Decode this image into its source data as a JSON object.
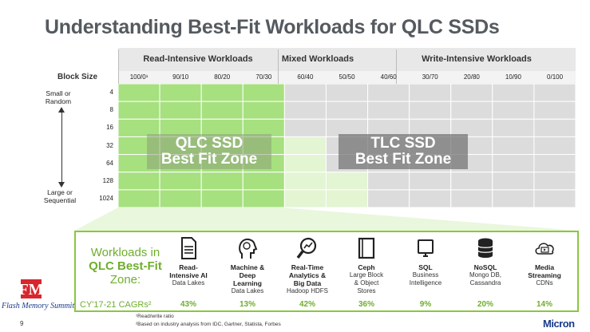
{
  "title": "Understanding Best-Fit Workloads for QLC SSDs",
  "header": {
    "block_size_label": "Block Size",
    "groups": [
      {
        "label": "Read-Intensive Workloads"
      },
      {
        "label": "Mixed Workloads"
      },
      {
        "label": "Write-Intensive Workloads"
      }
    ],
    "ratios": [
      "100/0¹",
      "90/10",
      "80/20",
      "70/30",
      "60/40",
      "50/50",
      "40/60",
      "30/70",
      "20/80",
      "10/90",
      "0/100"
    ]
  },
  "block_sizes": [
    "4",
    "8",
    "16",
    "32",
    "64",
    "128",
    "1024"
  ],
  "side_labels": {
    "top": "Small or\nRandom",
    "bottom": "Large or\nSequential"
  },
  "zones": {
    "qlc": {
      "line1": "QLC SSD",
      "line2": "Best Fit Zone"
    },
    "tlc": {
      "line1": "TLC SSD",
      "line2": "Best Fit Zone"
    }
  },
  "colors": {
    "green": "#a6e07f",
    "light_green": "#e3f5d3",
    "grey": "#dcdcdc",
    "accent": "#6fae2e"
  },
  "workloads": {
    "title_line1": "Workloads in",
    "title_line2": "QLC Best-Fit",
    "title_line3": "Zone:",
    "cagr_label": "CY'17-21 CAGRs²",
    "items": [
      {
        "name": "Read-\nIntensive AI",
        "desc": "Data Lakes",
        "cagr": "43%",
        "icon": "document-icon"
      },
      {
        "name": "Machine &\nDeep\nLearning",
        "desc": "Data Lakes",
        "cagr": "13%",
        "icon": "brain-head-icon"
      },
      {
        "name": "Real-Time\nAnalytics &\nBig Data",
        "desc": "Hadoop HDFS",
        "cagr": "42%",
        "icon": "magnifier-chart-icon"
      },
      {
        "name": "Ceph",
        "desc": "Large Block\n& Object\nStores",
        "cagr": "36%",
        "icon": "book-icon"
      },
      {
        "name": "SQL",
        "desc": "Business\nIntelligence",
        "cagr": "9%",
        "icon": "monitor-icon"
      },
      {
        "name": "NoSQL",
        "desc": "Mongo DB,\nCassandra",
        "cagr": "20%",
        "icon": "database-icon"
      },
      {
        "name": "Media\nStreaming",
        "desc": "CDNs",
        "cagr": "14%",
        "icon": "cloud-play-icon"
      }
    ]
  },
  "footnotes": [
    "¹Read/write ratio",
    "²Based on industry analysis from IDC, Gartner, Statista, Forbes"
  ],
  "page_number": "9",
  "logos": {
    "left": "Flash Memory Summit",
    "right": "Micron"
  }
}
